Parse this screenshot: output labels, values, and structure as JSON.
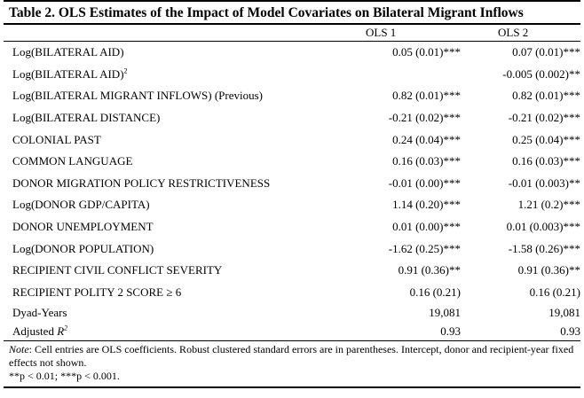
{
  "title": "Table 2. OLS Estimates of the Impact of Model Covariates on Bilateral Migrant Inflows",
  "columns": [
    "OLS 1",
    "OLS 2"
  ],
  "rows": [
    {
      "label": "Log(BILATERAL AID)",
      "sup": "",
      "ols1": "0.05 (0.01)***",
      "ols2": "0.07 (0.01)***"
    },
    {
      "label": "Log(BILATERAL AID)",
      "sup": "2",
      "ols1": "",
      "ols2": "-0.005 (0.002)**"
    },
    {
      "label": "Log(BILATERAL MIGRANT INFLOWS) (Previous)",
      "sup": "",
      "ols1": "0.82 (0.01)***",
      "ols2": "0.82 (0.01)***"
    },
    {
      "label": "Log(BILATERAL DISTANCE)",
      "sup": "",
      "ols1": "-0.21 (0.02)***",
      "ols2": "-0.21 (0.02)***"
    },
    {
      "label": "COLONIAL PAST",
      "sup": "",
      "ols1": "0.24 (0.04)***",
      "ols2": "0.25 (0.04)***"
    },
    {
      "label": "COMMON LANGUAGE",
      "sup": "",
      "ols1": "0.16 (0.03)***",
      "ols2": "0.16 (0.03)***"
    },
    {
      "label": "DONOR MIGRATION POLICY RESTRICTIVENESS",
      "sup": "",
      "ols1": "-0.01 (0.00)***",
      "ols2": "-0.01 (0.003)**"
    },
    {
      "label": "Log(DONOR GDP/CAPITA)",
      "sup": "",
      "ols1": "1.14 (0.20)***",
      "ols2": "1.21 (0.2)***"
    },
    {
      "label": "DONOR UNEMPLOYMENT",
      "sup": "",
      "ols1": "0.01 (0.00)***",
      "ols2": "0.01 (0.003)***"
    },
    {
      "label": "Log(DONOR POPULATION)",
      "sup": "",
      "ols1": "-1.62 (0.25)***",
      "ols2": "-1.58 (0.26)***"
    },
    {
      "label": "RECIPIENT CIVIL CONFLICT SEVERITY",
      "sup": "",
      "ols1": "0.91 (0.36)**",
      "ols2": "0.91 (0.36)**"
    },
    {
      "label": "RECIPIENT POLITY 2 SCORE ≥ 6",
      "sup": "",
      "ols1": "0.16 (0.21)",
      "ols2": "0.16 (0.21)"
    }
  ],
  "stats": [
    {
      "label": "Dyad-Years",
      "italic_part": "",
      "sup": "",
      "ols1": "19,081",
      "ols2": "19,081"
    },
    {
      "label": "Adjusted ",
      "italic_part": "R",
      "sup": "2",
      "ols1": "0.93",
      "ols2": "0.93"
    }
  ],
  "note": {
    "prefix": "Note",
    "text": ":  Cell entries are OLS coefficients. Robust clustered standard errors are in parentheses. Intercept, donor and recipient-year fixed effects not shown.",
    "significance": "**p < 0.01; ***p < 0.001."
  }
}
